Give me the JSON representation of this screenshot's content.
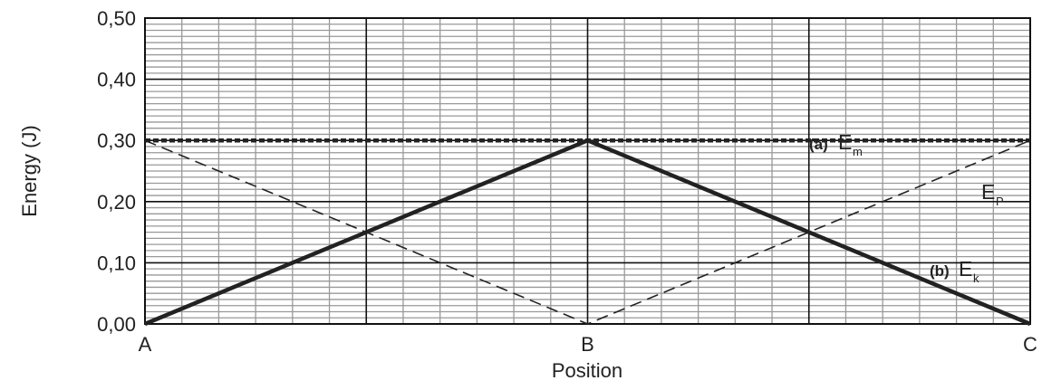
{
  "chart_data": {
    "type": "line",
    "title": "",
    "xlabel": "Position",
    "ylabel": "Energy (J)",
    "categories": [
      "A",
      "B",
      "C"
    ],
    "ylim": [
      0,
      0.5
    ],
    "y_ticks": [
      "0,00",
      "0,10",
      "0,20",
      "0,30",
      "0,40",
      "0,50"
    ],
    "grid": true,
    "series": [
      {
        "id": "em",
        "prefix": "(a)",
        "name": "E",
        "sub": "m",
        "style": "dotted",
        "points": [
          [
            0,
            0.3
          ],
          [
            1,
            0.3
          ],
          [
            2,
            0.3
          ]
        ]
      },
      {
        "id": "ep",
        "prefix": "",
        "name": "E",
        "sub": "P",
        "style": "dashed",
        "points": [
          [
            0,
            0.3
          ],
          [
            1,
            0.0
          ],
          [
            2,
            0.3
          ]
        ]
      },
      {
        "id": "ek",
        "prefix": "(b)",
        "name": "E",
        "sub": "k",
        "style": "solid",
        "points": [
          [
            0,
            0.0
          ],
          [
            1,
            0.3
          ],
          [
            2,
            0.0
          ]
        ]
      }
    ]
  }
}
